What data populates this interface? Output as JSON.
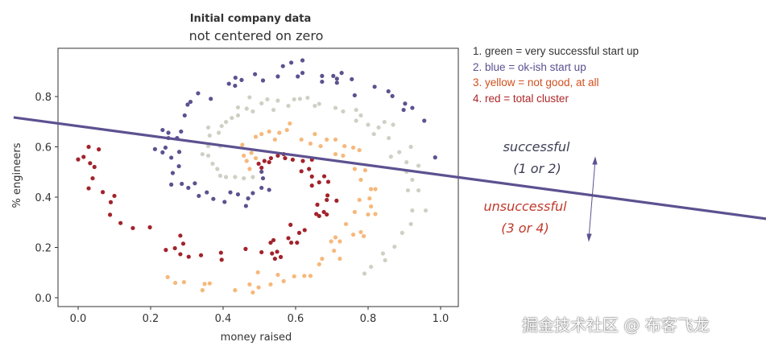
{
  "chart_data": {
    "type": "scatter",
    "title": "Initial company data",
    "subtitle": "not centered on zero",
    "xlabel": "money raised",
    "ylabel": "% engineers",
    "xlim": [
      -0.055,
      1.05
    ],
    "ylim": [
      -0.035,
      0.99
    ],
    "xticks": [
      "0.0",
      "0.2",
      "0.4",
      "0.6",
      "0.8",
      "1.0"
    ],
    "yticks": [
      "0.0",
      "0.2",
      "0.4",
      "0.6",
      "0.8"
    ],
    "grid": false,
    "series": [
      {
        "name": "green",
        "color": "#cdd1c4",
        "points": [
          [
            0.482,
            0.48
          ],
          [
            0.457,
            0.475
          ],
          [
            0.433,
            0.48
          ],
          [
            0.408,
            0.48
          ],
          [
            0.392,
            0.485
          ],
          [
            0.384,
            0.512
          ],
          [
            0.371,
            0.533
          ],
          [
            0.359,
            0.565
          ],
          [
            0.343,
            0.571
          ],
          [
            0.359,
            0.603
          ],
          [
            0.392,
            0.603
          ],
          [
            0.363,
            0.645
          ],
          [
            0.359,
            0.677
          ],
          [
            0.388,
            0.656
          ],
          [
            0.396,
            0.683
          ],
          [
            0.408,
            0.699
          ],
          [
            0.424,
            0.715
          ],
          [
            0.441,
            0.725
          ],
          [
            0.441,
            0.757
          ],
          [
            0.465,
            0.752
          ],
          [
            0.473,
            0.797
          ],
          [
            0.482,
            0.741
          ],
          [
            0.506,
            0.773
          ],
          [
            0.522,
            0.789
          ],
          [
            0.539,
            0.747
          ],
          [
            0.551,
            0.784
          ],
          [
            0.58,
            0.763
          ],
          [
            0.596,
            0.789
          ],
          [
            0.612,
            0.791
          ],
          [
            0.633,
            0.795
          ],
          [
            0.653,
            0.763
          ],
          [
            0.665,
            0.771
          ],
          [
            0.71,
            0.755
          ],
          [
            0.731,
            0.741
          ],
          [
            0.767,
            0.747
          ],
          [
            0.78,
            0.725
          ],
          [
            0.767,
            0.704
          ],
          [
            0.8,
            0.688
          ],
          [
            0.816,
            0.651
          ],
          [
            0.829,
            0.677
          ],
          [
            0.845,
            0.699
          ],
          [
            0.869,
            0.688
          ],
          [
            0.857,
            0.635
          ],
          [
            0.886,
            0.579
          ],
          [
            0.918,
            0.6
          ],
          [
            0.863,
            0.561
          ],
          [
            0.906,
            0.539
          ],
          [
            0.939,
            0.525
          ],
          [
            0.906,
            0.501
          ],
          [
            0.922,
            0.469
          ],
          [
            0.91,
            0.427
          ],
          [
            0.939,
            0.427
          ],
          [
            0.922,
            0.347
          ],
          [
            0.959,
            0.347
          ],
          [
            0.918,
            0.293
          ],
          [
            0.894,
            0.258
          ],
          [
            0.873,
            0.203
          ],
          [
            0.841,
            0.176
          ],
          [
            0.847,
            0.149
          ],
          [
            0.808,
            0.123
          ],
          [
            0.79,
            0.096
          ]
        ]
      },
      {
        "name": "blue",
        "color": "#5d5190",
        "points": [
          [
            0.506,
            0.501
          ],
          [
            0.51,
            0.475
          ],
          [
            0.506,
            0.437
          ],
          [
            0.527,
            0.429
          ],
          [
            0.482,
            0.416
          ],
          [
            0.469,
            0.395
          ],
          [
            0.463,
            0.365
          ],
          [
            0.441,
            0.411
          ],
          [
            0.42,
            0.419
          ],
          [
            0.404,
            0.381
          ],
          [
            0.373,
            0.393
          ],
          [
            0.355,
            0.419
          ],
          [
            0.333,
            0.405
          ],
          [
            0.322,
            0.455
          ],
          [
            0.304,
            0.437
          ],
          [
            0.286,
            0.453
          ],
          [
            0.257,
            0.45
          ],
          [
            0.261,
            0.496
          ],
          [
            0.278,
            0.523
          ],
          [
            0.257,
            0.557
          ],
          [
            0.241,
            0.597
          ],
          [
            0.233,
            0.578
          ],
          [
            0.212,
            0.591
          ],
          [
            0.279,
            0.58
          ],
          [
            0.233,
            0.667
          ],
          [
            0.249,
            0.656
          ],
          [
            0.249,
            0.635
          ],
          [
            0.273,
            0.635
          ],
          [
            0.284,
            0.661
          ],
          [
            0.294,
            0.725
          ],
          [
            0.302,
            0.768
          ],
          [
            0.31,
            0.779
          ],
          [
            0.331,
            0.813
          ],
          [
            0.366,
            0.791
          ],
          [
            0.416,
            0.851
          ],
          [
            0.433,
            0.843
          ],
          [
            0.434,
            0.875
          ],
          [
            0.451,
            0.866
          ],
          [
            0.488,
            0.889
          ],
          [
            0.51,
            0.864
          ],
          [
            0.551,
            0.88
          ],
          [
            0.565,
            0.921
          ],
          [
            0.588,
            0.935
          ],
          [
            0.619,
            0.944
          ],
          [
            0.619,
            0.894
          ],
          [
            0.606,
            0.88
          ],
          [
            0.673,
            0.882
          ],
          [
            0.673,
            0.859
          ],
          [
            0.704,
            0.882
          ],
          [
            0.714,
            0.871
          ],
          [
            0.727,
            0.894
          ],
          [
            0.714,
            0.855
          ],
          [
            0.755,
            0.869
          ],
          [
            0.763,
            0.805
          ],
          [
            0.818,
            0.839
          ],
          [
            0.856,
            0.821
          ],
          [
            0.867,
            0.802
          ],
          [
            0.902,
            0.772
          ],
          [
            0.922,
            0.755
          ],
          [
            0.898,
            0.747
          ],
          [
            0.955,
            0.704
          ],
          [
            0.985,
            0.558
          ]
        ]
      },
      {
        "name": "yellow",
        "color": "#f6b87b",
        "points": [
          [
            0.473,
            0.512
          ],
          [
            0.465,
            0.544
          ],
          [
            0.457,
            0.565
          ],
          [
            0.478,
            0.576
          ],
          [
            0.49,
            0.555
          ],
          [
            0.453,
            0.608
          ],
          [
            0.49,
            0.64
          ],
          [
            0.506,
            0.651
          ],
          [
            0.527,
            0.661
          ],
          [
            0.543,
            0.629
          ],
          [
            0.555,
            0.656
          ],
          [
            0.576,
            0.667
          ],
          [
            0.584,
            0.693
          ],
          [
            0.616,
            0.629
          ],
          [
            0.641,
            0.613
          ],
          [
            0.653,
            0.651
          ],
          [
            0.669,
            0.603
          ],
          [
            0.686,
            0.629
          ],
          [
            0.71,
            0.629
          ],
          [
            0.71,
            0.571
          ],
          [
            0.731,
            0.565
          ],
          [
            0.735,
            0.603
          ],
          [
            0.759,
            0.597
          ],
          [
            0.776,
            0.587
          ],
          [
            0.763,
            0.512
          ],
          [
            0.792,
            0.507
          ],
          [
            0.78,
            0.469
          ],
          [
            0.808,
            0.432
          ],
          [
            0.82,
            0.432
          ],
          [
            0.804,
            0.395
          ],
          [
            0.776,
            0.389
          ],
          [
            0.808,
            0.363
          ],
          [
            0.8,
            0.331
          ],
          [
            0.82,
            0.333
          ],
          [
            0.763,
            0.341
          ],
          [
            0.739,
            0.293
          ],
          [
            0.759,
            0.251
          ],
          [
            0.78,
            0.261
          ],
          [
            0.788,
            0.245
          ],
          [
            0.71,
            0.24
          ],
          [
            0.722,
            0.224
          ],
          [
            0.698,
            0.224
          ],
          [
            0.706,
            0.187
          ],
          [
            0.722,
            0.155
          ],
          [
            0.673,
            0.155
          ],
          [
            0.665,
            0.133
          ],
          [
            0.624,
            0.087
          ],
          [
            0.641,
            0.087
          ],
          [
            0.596,
            0.085
          ],
          [
            0.567,
            0.066
          ],
          [
            0.551,
            0.091
          ],
          [
            0.531,
            0.053
          ],
          [
            0.496,
            0.101
          ],
          [
            0.498,
            0.041
          ],
          [
            0.482,
            0.021
          ],
          [
            0.473,
            0.053
          ],
          [
            0.433,
            0.03
          ],
          [
            0.363,
            0.057
          ],
          [
            0.349,
            0.055
          ],
          [
            0.343,
            0.03
          ],
          [
            0.292,
            0.062
          ],
          [
            0.268,
            0.059
          ],
          [
            0.247,
            0.082
          ]
        ]
      },
      {
        "name": "red",
        "color": "#a2232b",
        "points": [
          [
            0.0,
            0.55
          ],
          [
            0.029,
            0.6
          ],
          [
            0.057,
            0.59
          ],
          [
            0.015,
            0.56
          ],
          [
            0.033,
            0.535
          ],
          [
            0.045,
            0.52
          ],
          [
            0.04,
            0.475
          ],
          [
            0.029,
            0.435
          ],
          [
            0.068,
            0.42
          ],
          [
            0.1,
            0.405
          ],
          [
            0.09,
            0.38
          ],
          [
            0.088,
            0.33
          ],
          [
            0.117,
            0.297
          ],
          [
            0.151,
            0.277
          ],
          [
            0.198,
            0.28
          ],
          [
            0.242,
            0.19
          ],
          [
            0.267,
            0.197
          ],
          [
            0.282,
            0.247
          ],
          [
            0.29,
            0.215
          ],
          [
            0.282,
            0.173
          ],
          [
            0.305,
            0.163
          ],
          [
            0.339,
            0.169
          ],
          [
            0.394,
            0.179
          ],
          [
            0.396,
            0.151
          ],
          [
            0.462,
            0.194
          ],
          [
            0.506,
            0.181
          ],
          [
            0.535,
            0.176
          ],
          [
            0.543,
            0.155
          ],
          [
            0.559,
            0.162
          ],
          [
            0.531,
            0.219
          ],
          [
            0.539,
            0.229
          ],
          [
            0.549,
            0.183
          ],
          [
            0.58,
            0.237
          ],
          [
            0.588,
            0.219
          ],
          [
            0.586,
            0.29
          ],
          [
            0.61,
            0.258
          ],
          [
            0.625,
            0.269
          ],
          [
            0.604,
            0.219
          ],
          [
            0.665,
            0.325
          ],
          [
            0.657,
            0.333
          ],
          [
            0.686,
            0.331
          ],
          [
            0.678,
            0.341
          ],
          [
            0.66,
            0.37
          ],
          [
            0.686,
            0.389
          ],
          [
            0.713,
            0.386
          ],
          [
            0.688,
            0.407
          ],
          [
            0.645,
            0.446
          ],
          [
            0.665,
            0.459
          ],
          [
            0.69,
            0.461
          ],
          [
            0.679,
            0.483
          ],
          [
            0.645,
            0.482
          ],
          [
            0.616,
            0.503
          ],
          [
            0.637,
            0.512
          ],
          [
            0.62,
            0.544
          ],
          [
            0.645,
            0.549
          ],
          [
            0.592,
            0.549
          ],
          [
            0.571,
            0.555
          ],
          [
            0.551,
            0.565
          ],
          [
            0.532,
            0.555
          ],
          [
            0.514,
            0.544
          ],
          [
            0.498,
            0.533
          ],
          [
            0.506,
            0.517
          ],
          [
            0.567,
            0.571
          ],
          [
            0.527,
            0.539
          ]
        ]
      }
    ],
    "decision_line": {
      "color": "#5d5190",
      "from": [
        -0.178,
        0.717
      ],
      "to": [
        1.898,
        0.314
      ]
    }
  },
  "legend": [
    {
      "text": "1. green = very successful start up",
      "color": "#333333"
    },
    {
      "text": "2. blue = ok-ish start up",
      "color": "#5b4f8f"
    },
    {
      "text": "3. yellow = not good, at all",
      "color": "#d0501e"
    },
    {
      "text": "4. red = total cluster",
      "color": "#ad2629"
    }
  ],
  "annotations": {
    "successful": "successful",
    "successful_sub": "(1 or 2)",
    "unsuccessful": "unsuccessful",
    "unsuccessful_sub": "(3 or 4)"
  },
  "watermark": "掘金技术社区 @ 布客飞龙"
}
